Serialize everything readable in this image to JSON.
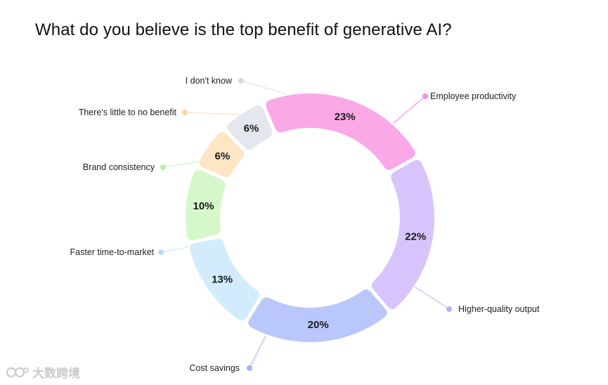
{
  "chart_data": {
    "type": "pie",
    "variant": "donut",
    "title": "What do you believe is the top benefit of generative AI?",
    "slices": [
      {
        "label": "Employee productivity",
        "value": 23,
        "value_label": "23%",
        "color": "#fba8e6",
        "dot": "#f592d8"
      },
      {
        "label": "Higher-quality output",
        "value": 22,
        "value_label": "22%",
        "color": "#d7c4fd",
        "dot": "#c3a9fa"
      },
      {
        "label": "Cost savings",
        "value": 20,
        "value_label": "20%",
        "color": "#bac7fb",
        "dot": "#a3b3f6"
      },
      {
        "label": "Faster time-to-market",
        "value": 13,
        "value_label": "13%",
        "color": "#d3ecfd",
        "dot": "#b8dcf7"
      },
      {
        "label": "Brand consistency",
        "value": 10,
        "value_label": "10%",
        "color": "#d6f7c9",
        "dot": "#bcefa5"
      },
      {
        "label": "There's little to no benefit",
        "value": 6,
        "value_label": "6%",
        "color": "#fee6c5",
        "dot": "#fbd6a3"
      },
      {
        "label": "I don't know",
        "value": 6,
        "value_label": "6%",
        "color": "#e4e7ed",
        "dot": "#d6d9e0"
      }
    ]
  },
  "watermark": {
    "text": "大数跨境"
  }
}
